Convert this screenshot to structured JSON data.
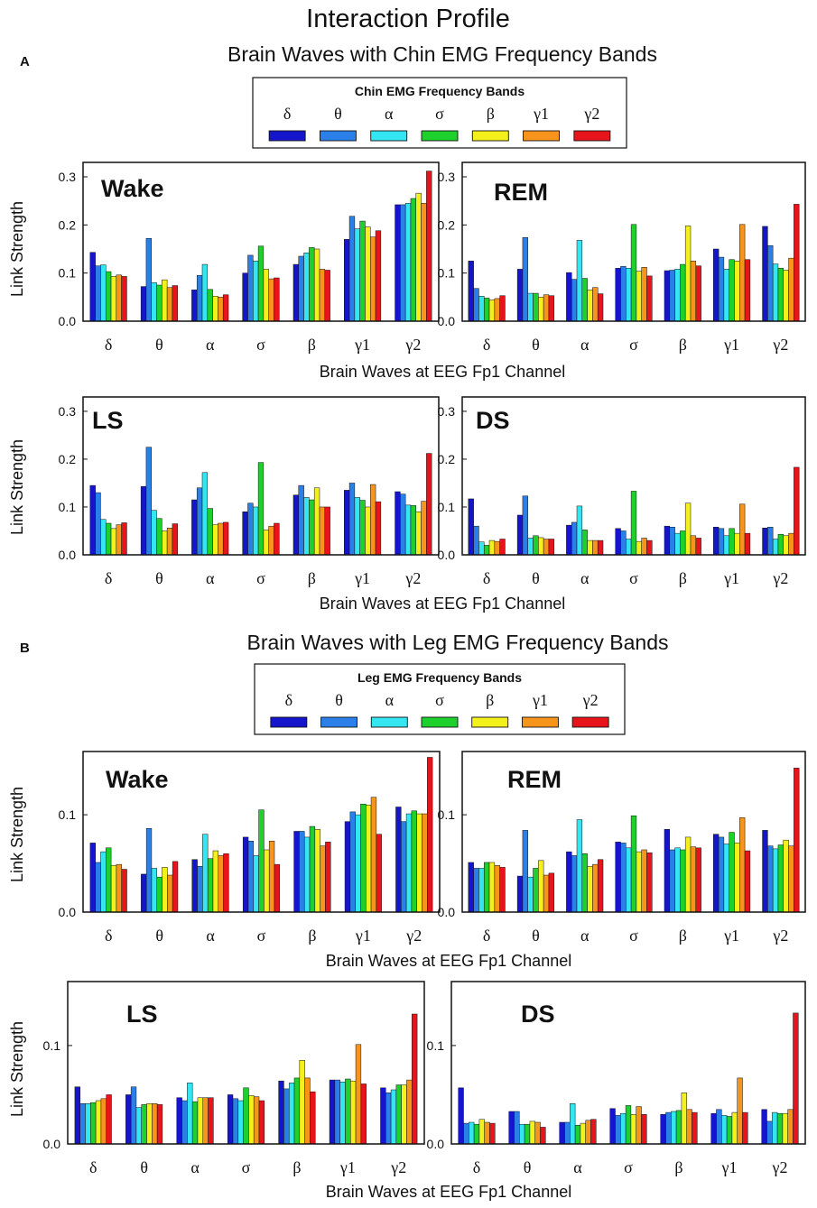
{
  "figure_title": "Interaction Profile",
  "colors": {
    "δ": "#1515cc",
    "θ": "#2b7fe8",
    "α": "#33e6f2",
    "σ": "#1ed02c",
    "β": "#f4f01c",
    "γ1": "#f7941c",
    "γ2": "#e8141c"
  },
  "panels": [
    {
      "letter": "A",
      "subtitle": "Brain Waves with Chin EMG Frequency Bands",
      "legend_title": "Chin EMG Frequency Bands",
      "xlabel": "Brain Waves at EEG Fp1 Channel",
      "ylabel": "Link Strength",
      "bands": [
        "δ",
        "θ",
        "α",
        "σ",
        "β",
        "γ1",
        "γ2"
      ]
    },
    {
      "letter": "B",
      "subtitle": "Brain Waves with Leg EMG Frequency Bands",
      "legend_title": "Leg EMG Frequency Bands",
      "xlabel": "Brain Waves at EEG Fp1 Channel",
      "ylabel": "Link Strength",
      "bands": [
        "δ",
        "θ",
        "α",
        "σ",
        "β",
        "γ1",
        "γ2"
      ]
    }
  ],
  "chart_data": [
    {
      "type": "bar",
      "panel": "A",
      "title": "Wake",
      "categories": [
        "δ",
        "θ",
        "α",
        "σ",
        "β",
        "γ1",
        "γ2"
      ],
      "ylim": [
        0,
        0.33
      ],
      "yticks": [
        "0.0",
        "0.1",
        "0.2",
        "0.3"
      ],
      "ytick_values": [
        0,
        0.1,
        0.2,
        0.3
      ],
      "series": [
        {
          "name": "δ",
          "values": [
            0.143,
            0.072,
            0.065,
            0.1,
            0.118,
            0.17,
            0.242
          ]
        },
        {
          "name": "θ",
          "values": [
            0.115,
            0.172,
            0.095,
            0.137,
            0.135,
            0.218,
            0.242
          ]
        },
        {
          "name": "α",
          "values": [
            0.117,
            0.08,
            0.118,
            0.125,
            0.142,
            0.192,
            0.245
          ]
        },
        {
          "name": "σ",
          "values": [
            0.103,
            0.075,
            0.066,
            0.156,
            0.153,
            0.208,
            0.255
          ]
        },
        {
          "name": "β",
          "values": [
            0.093,
            0.086,
            0.052,
            0.108,
            0.15,
            0.196,
            0.266
          ]
        },
        {
          "name": "γ1",
          "values": [
            0.096,
            0.07,
            0.05,
            0.088,
            0.108,
            0.175,
            0.245
          ]
        },
        {
          "name": "γ2",
          "values": [
            0.093,
            0.074,
            0.055,
            0.09,
            0.106,
            0.188,
            0.312
          ]
        }
      ]
    },
    {
      "type": "bar",
      "panel": "A",
      "title": "REM",
      "categories": [
        "δ",
        "θ",
        "α",
        "σ",
        "β",
        "γ1",
        "γ2"
      ],
      "ylim": [
        0,
        0.33
      ],
      "yticks": [
        "0.0",
        "0.1",
        "0.2",
        "0.3"
      ],
      "ytick_values": [
        0,
        0.1,
        0.2,
        0.3
      ],
      "series": [
        {
          "name": "δ",
          "values": [
            0.125,
            0.108,
            0.101,
            0.11,
            0.105,
            0.15,
            0.197
          ]
        },
        {
          "name": "θ",
          "values": [
            0.068,
            0.174,
            0.087,
            0.114,
            0.106,
            0.133,
            0.157
          ]
        },
        {
          "name": "α",
          "values": [
            0.052,
            0.058,
            0.168,
            0.11,
            0.108,
            0.108,
            0.119
          ]
        },
        {
          "name": "σ",
          "values": [
            0.048,
            0.058,
            0.089,
            0.201,
            0.118,
            0.128,
            0.11
          ]
        },
        {
          "name": "β",
          "values": [
            0.044,
            0.05,
            0.065,
            0.104,
            0.198,
            0.125,
            0.106
          ]
        },
        {
          "name": "γ1",
          "values": [
            0.047,
            0.055,
            0.07,
            0.112,
            0.125,
            0.201,
            0.131
          ]
        },
        {
          "name": "γ2",
          "values": [
            0.053,
            0.053,
            0.057,
            0.094,
            0.115,
            0.128,
            0.243
          ]
        }
      ]
    },
    {
      "type": "bar",
      "panel": "A",
      "title": "LS",
      "categories": [
        "δ",
        "θ",
        "α",
        "σ",
        "β",
        "γ1",
        "γ2"
      ],
      "ylim": [
        0,
        0.33
      ],
      "yticks": [
        "0.0",
        "0.1",
        "0.2",
        "0.3"
      ],
      "ytick_values": [
        0,
        0.1,
        0.2,
        0.3
      ],
      "series": [
        {
          "name": "δ",
          "values": [
            0.145,
            0.143,
            0.115,
            0.09,
            0.125,
            0.135,
            0.132
          ]
        },
        {
          "name": "θ",
          "values": [
            0.13,
            0.225,
            0.14,
            0.108,
            0.145,
            0.15,
            0.127
          ]
        },
        {
          "name": "α",
          "values": [
            0.074,
            0.093,
            0.172,
            0.1,
            0.12,
            0.12,
            0.104
          ]
        },
        {
          "name": "σ",
          "values": [
            0.066,
            0.076,
            0.097,
            0.193,
            0.115,
            0.114,
            0.103
          ]
        },
        {
          "name": "β",
          "values": [
            0.055,
            0.05,
            0.063,
            0.052,
            0.14,
            0.1,
            0.09
          ]
        },
        {
          "name": "γ1",
          "values": [
            0.063,
            0.056,
            0.066,
            0.06,
            0.1,
            0.147,
            0.112
          ]
        },
        {
          "name": "γ2",
          "values": [
            0.067,
            0.065,
            0.068,
            0.066,
            0.1,
            0.111,
            0.212
          ]
        }
      ]
    },
    {
      "type": "bar",
      "panel": "A",
      "title": "DS",
      "categories": [
        "δ",
        "θ",
        "α",
        "σ",
        "β",
        "γ1",
        "γ2"
      ],
      "ylim": [
        0,
        0.33
      ],
      "yticks": [
        "0.0",
        "0.1",
        "0.2",
        "0.3"
      ],
      "ytick_values": [
        0,
        0.1,
        0.2,
        0.3
      ],
      "series": [
        {
          "name": "δ",
          "values": [
            0.117,
            0.083,
            0.062,
            0.055,
            0.06,
            0.058,
            0.056
          ]
        },
        {
          "name": "θ",
          "values": [
            0.06,
            0.123,
            0.068,
            0.05,
            0.058,
            0.055,
            0.058
          ]
        },
        {
          "name": "α",
          "values": [
            0.027,
            0.035,
            0.102,
            0.033,
            0.045,
            0.04,
            0.033
          ]
        },
        {
          "name": "σ",
          "values": [
            0.02,
            0.04,
            0.052,
            0.133,
            0.05,
            0.055,
            0.043
          ]
        },
        {
          "name": "β",
          "values": [
            0.03,
            0.036,
            0.03,
            0.028,
            0.108,
            0.045,
            0.04
          ]
        },
        {
          "name": "γ1",
          "values": [
            0.028,
            0.033,
            0.03,
            0.035,
            0.04,
            0.106,
            0.045
          ]
        },
        {
          "name": "γ2",
          "values": [
            0.033,
            0.033,
            0.03,
            0.03,
            0.035,
            0.045,
            0.183
          ]
        }
      ]
    },
    {
      "type": "bar",
      "panel": "B",
      "title": "Wake",
      "categories": [
        "δ",
        "θ",
        "α",
        "σ",
        "β",
        "γ1",
        "γ2"
      ],
      "ylim": [
        0,
        0.165
      ],
      "yticks": [
        "0.0",
        "0.1"
      ],
      "ytick_values": [
        0,
        0.1
      ],
      "series": [
        {
          "name": "δ",
          "values": [
            0.071,
            0.039,
            0.054,
            0.077,
            0.083,
            0.093,
            0.108
          ]
        },
        {
          "name": "θ",
          "values": [
            0.051,
            0.086,
            0.047,
            0.073,
            0.083,
            0.103,
            0.093
          ]
        },
        {
          "name": "α",
          "values": [
            0.062,
            0.045,
            0.08,
            0.058,
            0.077,
            0.1,
            0.101
          ]
        },
        {
          "name": "σ",
          "values": [
            0.066,
            0.036,
            0.055,
            0.105,
            0.088,
            0.111,
            0.104
          ]
        },
        {
          "name": "β",
          "values": [
            0.048,
            0.046,
            0.063,
            0.064,
            0.085,
            0.11,
            0.101
          ]
        },
        {
          "name": "γ1",
          "values": [
            0.049,
            0.038,
            0.058,
            0.073,
            0.068,
            0.118,
            0.101
          ]
        },
        {
          "name": "γ2",
          "values": [
            0.044,
            0.052,
            0.06,
            0.049,
            0.072,
            0.08,
            0.159
          ]
        }
      ]
    },
    {
      "type": "bar",
      "panel": "B",
      "title": "REM",
      "categories": [
        "δ",
        "θ",
        "α",
        "σ",
        "β",
        "γ1",
        "γ2"
      ],
      "ylim": [
        0,
        0.165
      ],
      "yticks": [
        "0.0",
        "0.1"
      ],
      "ytick_values": [
        0,
        0.1
      ],
      "series": [
        {
          "name": "δ",
          "values": [
            0.051,
            0.037,
            0.062,
            0.072,
            0.085,
            0.08,
            0.084
          ]
        },
        {
          "name": "θ",
          "values": [
            0.045,
            0.084,
            0.058,
            0.071,
            0.064,
            0.077,
            0.068
          ]
        },
        {
          "name": "α",
          "values": [
            0.045,
            0.036,
            0.095,
            0.066,
            0.066,
            0.07,
            0.065
          ]
        },
        {
          "name": "σ",
          "values": [
            0.051,
            0.045,
            0.06,
            0.099,
            0.064,
            0.082,
            0.069
          ]
        },
        {
          "name": "β",
          "values": [
            0.051,
            0.053,
            0.047,
            0.062,
            0.077,
            0.071,
            0.074
          ]
        },
        {
          "name": "γ1",
          "values": [
            0.048,
            0.038,
            0.049,
            0.064,
            0.067,
            0.097,
            0.068
          ]
        },
        {
          "name": "γ2",
          "values": [
            0.046,
            0.04,
            0.054,
            0.061,
            0.066,
            0.063,
            0.148
          ]
        }
      ]
    },
    {
      "type": "bar",
      "panel": "B",
      "title": "LS",
      "categories": [
        "δ",
        "θ",
        "α",
        "σ",
        "β",
        "γ1",
        "γ2"
      ],
      "ylim": [
        0,
        0.165
      ],
      "yticks": [
        "0.0",
        "0.1"
      ],
      "ytick_values": [
        0,
        0.1
      ],
      "series": [
        {
          "name": "δ",
          "values": [
            0.058,
            0.05,
            0.047,
            0.05,
            0.064,
            0.065,
            0.057
          ]
        },
        {
          "name": "θ",
          "values": [
            0.041,
            0.058,
            0.044,
            0.046,
            0.056,
            0.065,
            0.052
          ]
        },
        {
          "name": "α",
          "values": [
            0.041,
            0.037,
            0.062,
            0.044,
            0.062,
            0.063,
            0.055
          ]
        },
        {
          "name": "σ",
          "values": [
            0.042,
            0.04,
            0.043,
            0.057,
            0.067,
            0.066,
            0.06
          ]
        },
        {
          "name": "β",
          "values": [
            0.044,
            0.041,
            0.047,
            0.049,
            0.085,
            0.064,
            0.06
          ]
        },
        {
          "name": "γ1",
          "values": [
            0.046,
            0.041,
            0.047,
            0.048,
            0.067,
            0.101,
            0.065
          ]
        },
        {
          "name": "γ2",
          "values": [
            0.05,
            0.04,
            0.047,
            0.044,
            0.053,
            0.061,
            0.132
          ]
        }
      ]
    },
    {
      "type": "bar",
      "panel": "B",
      "title": "DS",
      "categories": [
        "δ",
        "θ",
        "α",
        "σ",
        "β",
        "γ1",
        "γ2"
      ],
      "ylim": [
        0,
        0.165
      ],
      "yticks": [
        "0.0",
        "0.1"
      ],
      "ytick_values": [
        0,
        0.1
      ],
      "series": [
        {
          "name": "δ",
          "values": [
            0.057,
            0.033,
            0.022,
            0.036,
            0.03,
            0.031,
            0.035
          ]
        },
        {
          "name": "θ",
          "values": [
            0.021,
            0.033,
            0.022,
            0.029,
            0.032,
            0.035,
            0.023
          ]
        },
        {
          "name": "α",
          "values": [
            0.022,
            0.02,
            0.041,
            0.031,
            0.033,
            0.029,
            0.032
          ]
        },
        {
          "name": "σ",
          "values": [
            0.02,
            0.02,
            0.019,
            0.039,
            0.034,
            0.028,
            0.031
          ]
        },
        {
          "name": "β",
          "values": [
            0.025,
            0.023,
            0.021,
            0.03,
            0.052,
            0.032,
            0.031
          ]
        },
        {
          "name": "γ1",
          "values": [
            0.022,
            0.022,
            0.024,
            0.038,
            0.035,
            0.067,
            0.035
          ]
        },
        {
          "name": "γ2",
          "values": [
            0.021,
            0.017,
            0.025,
            0.03,
            0.032,
            0.032,
            0.133
          ]
        }
      ]
    }
  ]
}
